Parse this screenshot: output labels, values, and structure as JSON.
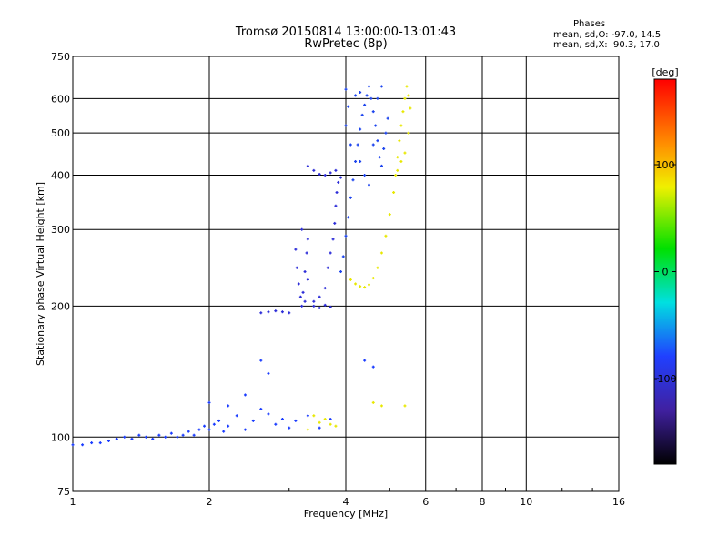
{
  "header": {
    "title_line1": "Tromsø 20150814 13:00:00-13:01:43",
    "title_line2": "RwPretec (8p)",
    "stats_heading": "Phases",
    "stats_o": "mean, sd,O: -97.0, 14.5",
    "stats_x": "mean, sd,X:  90.3, 17.0"
  },
  "chart_data": {
    "type": "scatter",
    "title": "Tromsø 20150814 13:00:00-13:01:43",
    "subtitle": "RwPretec (8p)",
    "xlabel": "Frequency [MHz]",
    "ylabel": "Stationary phase Virtual Height [km]",
    "xscale": "log",
    "yscale": "log",
    "xlim": [
      1,
      16
    ],
    "ylim": [
      75,
      750
    ],
    "xticks": [
      1,
      2,
      4,
      6,
      8,
      10,
      16
    ],
    "xtick_labels": [
      "1",
      "2",
      "4",
      "6",
      "8",
      "10",
      "16"
    ],
    "yticks": [
      75,
      100,
      200,
      300,
      400,
      500,
      600,
      750
    ],
    "ytick_labels": [
      "75",
      "100",
      "200",
      "300",
      "400",
      "500",
      "600",
      "750"
    ],
    "grid": true,
    "colorbar": {
      "label": "[deg]",
      "range": [
        -180,
        180
      ],
      "ticks": [
        100,
        0,
        -100
      ],
      "tick_labels": [
        "100",
        "0",
        "-100"
      ]
    },
    "series": [
      {
        "color": "#1a3cff",
        "phase": -100,
        "points": [
          [
            1.0,
            96
          ],
          [
            1.05,
            96
          ],
          [
            1.1,
            97
          ],
          [
            1.15,
            97
          ],
          [
            1.2,
            98
          ],
          [
            1.25,
            99
          ],
          [
            1.3,
            100
          ],
          [
            1.35,
            99
          ],
          [
            1.4,
            101
          ],
          [
            1.45,
            100
          ],
          [
            1.5,
            99
          ],
          [
            1.55,
            101
          ],
          [
            1.6,
            100
          ],
          [
            1.65,
            102
          ],
          [
            1.7,
            100
          ],
          [
            1.75,
            101
          ],
          [
            1.8,
            103
          ],
          [
            1.85,
            101
          ],
          [
            1.9,
            104
          ],
          [
            1.95,
            106
          ],
          [
            2.0,
            104
          ],
          [
            2.05,
            107
          ],
          [
            2.1,
            109
          ],
          [
            2.15,
            103
          ],
          [
            2.2,
            106
          ],
          [
            2.3,
            112
          ],
          [
            2.4,
            104
          ],
          [
            2.5,
            109
          ],
          [
            2.6,
            116
          ],
          [
            2.7,
            113
          ],
          [
            2.8,
            107
          ],
          [
            2.9,
            110
          ],
          [
            3.0,
            105
          ],
          [
            3.1,
            109
          ],
          [
            3.3,
            112
          ],
          [
            3.5,
            105
          ],
          [
            3.7,
            110
          ],
          [
            2.0,
            120
          ],
          [
            2.2,
            118
          ],
          [
            2.4,
            125
          ],
          [
            2.6,
            150
          ],
          [
            2.7,
            140
          ],
          [
            4.4,
            150
          ],
          [
            4.6,
            145
          ]
        ]
      },
      {
        "color": "#2c2cd8",
        "phase": -110,
        "points": [
          [
            2.6,
            193
          ],
          [
            2.7,
            194
          ],
          [
            2.8,
            195
          ],
          [
            2.9,
            194
          ],
          [
            3.0,
            193
          ],
          [
            3.1,
            270
          ],
          [
            3.12,
            245
          ],
          [
            3.15,
            225
          ],
          [
            3.18,
            210
          ],
          [
            3.2,
            200
          ],
          [
            3.22,
            215
          ],
          [
            3.25,
            240
          ],
          [
            3.28,
            265
          ],
          [
            3.3,
            285
          ],
          [
            3.2,
            300
          ],
          [
            3.3,
            230
          ],
          [
            3.25,
            205
          ],
          [
            3.4,
            205
          ],
          [
            3.5,
            210
          ],
          [
            3.6,
            220
          ],
          [
            3.65,
            245
          ],
          [
            3.7,
            265
          ],
          [
            3.75,
            285
          ],
          [
            3.78,
            310
          ],
          [
            3.8,
            340
          ],
          [
            3.82,
            365
          ],
          [
            3.85,
            385
          ],
          [
            3.9,
            395
          ],
          [
            3.3,
            420
          ],
          [
            3.4,
            410
          ],
          [
            3.5,
            402
          ],
          [
            3.6,
            400
          ],
          [
            3.7,
            405
          ],
          [
            3.8,
            410
          ],
          [
            3.4,
            200
          ],
          [
            3.5,
            198
          ],
          [
            3.6,
            201
          ],
          [
            3.7,
            199
          ]
        ]
      },
      {
        "color": "#1c44ee",
        "phase": -95,
        "points": [
          [
            3.9,
            240
          ],
          [
            3.95,
            260
          ],
          [
            4.0,
            290
          ],
          [
            4.05,
            320
          ],
          [
            4.1,
            355
          ],
          [
            4.15,
            390
          ],
          [
            4.2,
            430
          ],
          [
            4.25,
            470
          ],
          [
            4.3,
            510
          ],
          [
            4.35,
            550
          ],
          [
            4.4,
            580
          ],
          [
            4.45,
            610
          ],
          [
            4.5,
            640
          ],
          [
            4.55,
            600
          ],
          [
            4.6,
            560
          ],
          [
            4.65,
            520
          ],
          [
            4.7,
            480
          ],
          [
            4.75,
            440
          ],
          [
            4.8,
            420
          ],
          [
            4.85,
            460
          ],
          [
            4.9,
            500
          ],
          [
            4.95,
            540
          ],
          [
            4.1,
            470
          ],
          [
            4.0,
            520
          ],
          [
            4.05,
            575
          ],
          [
            4.3,
            430
          ],
          [
            4.4,
            400
          ],
          [
            4.5,
            380
          ],
          [
            4.6,
            470
          ],
          [
            4.7,
            600
          ],
          [
            4.8,
            640
          ],
          [
            4.2,
            610
          ],
          [
            4.3,
            620
          ],
          [
            4.0,
            630
          ]
        ]
      },
      {
        "color": "#e8e800",
        "phase": 90,
        "points": [
          [
            4.1,
            230
          ],
          [
            4.2,
            225
          ],
          [
            4.3,
            222
          ],
          [
            4.4,
            221
          ],
          [
            4.5,
            224
          ],
          [
            4.6,
            232
          ],
          [
            4.7,
            245
          ],
          [
            4.8,
            265
          ],
          [
            4.9,
            290
          ],
          [
            5.0,
            325
          ],
          [
            5.1,
            365
          ],
          [
            5.15,
            400
          ],
          [
            5.2,
            440
          ],
          [
            5.25,
            480
          ],
          [
            5.3,
            520
          ],
          [
            5.35,
            560
          ],
          [
            5.4,
            600
          ],
          [
            5.45,
            640
          ],
          [
            5.5,
            610
          ],
          [
            5.55,
            570
          ],
          [
            5.5,
            500
          ],
          [
            5.4,
            450
          ],
          [
            5.3,
            430
          ],
          [
            5.2,
            410
          ],
          [
            3.5,
            108
          ],
          [
            3.6,
            110
          ],
          [
            3.7,
            107
          ],
          [
            3.8,
            106
          ],
          [
            3.4,
            112
          ],
          [
            3.3,
            104
          ],
          [
            4.6,
            120
          ],
          [
            4.8,
            118
          ],
          [
            5.4,
            118
          ]
        ]
      }
    ]
  }
}
